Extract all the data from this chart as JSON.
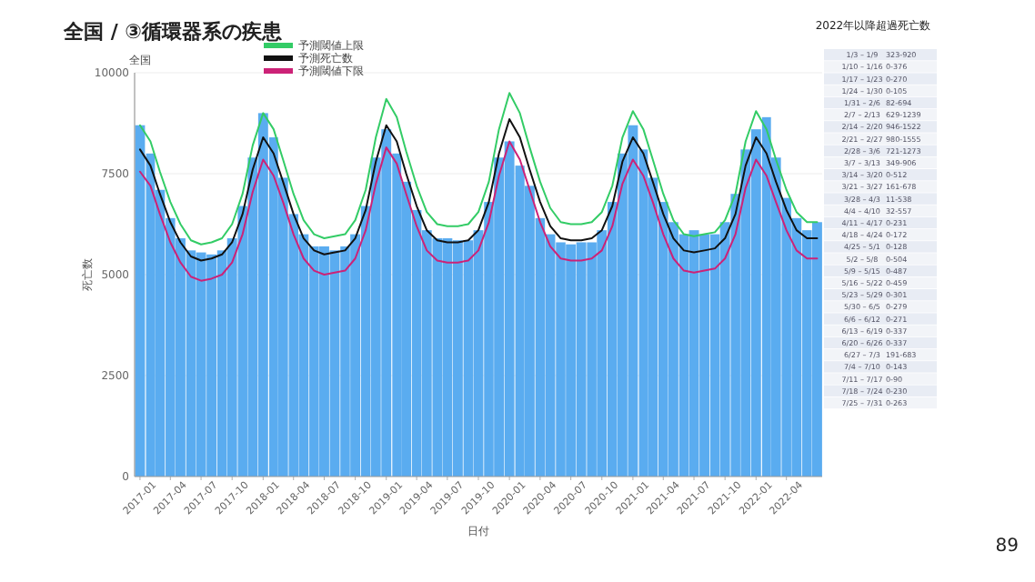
{
  "chart_data": [
    {
      "type": "bar",
      "title": "全国 / ③循環器系の疾患",
      "xlabel": "日付",
      "ylabel": "死亡数",
      "annotations": [
        "全国",
        "89"
      ],
      "legend": "top",
      "grid": "y",
      "x": [
        "2017-01",
        "2017-02",
        "2017-03",
        "2017-04",
        "2017-05",
        "2017-06",
        "2017-07",
        "2017-08",
        "2017-09",
        "2017-10",
        "2017-11",
        "2017-12",
        "2018-01",
        "2018-02",
        "2018-03",
        "2018-04",
        "2018-05",
        "2018-06",
        "2018-07",
        "2018-08",
        "2018-09",
        "2018-10",
        "2018-11",
        "2018-12",
        "2019-01",
        "2019-02",
        "2019-03",
        "2019-04",
        "2019-05",
        "2019-06",
        "2019-07",
        "2019-08",
        "2019-09",
        "2019-10",
        "2019-11",
        "2019-12",
        "2020-01",
        "2020-02",
        "2020-03",
        "2020-04",
        "2020-05",
        "2020-06",
        "2020-07",
        "2020-08",
        "2020-09",
        "2020-10",
        "2020-11",
        "2020-12",
        "2021-01",
        "2021-02",
        "2021-03",
        "2021-04",
        "2021-05",
        "2021-06",
        "2021-07",
        "2021-08",
        "2021-09",
        "2021-10",
        "2021-11",
        "2021-12",
        "2022-01",
        "2022-02",
        "2022-03",
        "2022-04",
        "2022-05",
        "2022-06",
        "2022-07"
      ],
      "xlim": [
        "2016-12-16",
        "2022-07-16"
      ],
      "xticks": [
        {
          "value": "2017-01-01",
          "label": "2017-01"
        },
        {
          "value": "2017-04-01",
          "label": "2017-04"
        },
        {
          "value": "2017-07-01",
          "label": "2017-07"
        },
        {
          "value": "2017-10-01",
          "label": "2017-10"
        },
        {
          "value": "2018-01-01",
          "label": "2018-01"
        },
        {
          "value": "2018-04-01",
          "label": "2018-04"
        },
        {
          "value": "2018-07-01",
          "label": "2018-07"
        },
        {
          "value": "2018-10-01",
          "label": "2018-10"
        },
        {
          "value": "2019-01-01",
          "label": "2019-01"
        },
        {
          "value": "2019-04-01",
          "label": "2019-04"
        },
        {
          "value": "2019-07-01",
          "label": "2019-07"
        },
        {
          "value": "2019-10-01",
          "label": "2019-10"
        },
        {
          "value": "2020-01-01",
          "label": "2020-01"
        },
        {
          "value": "2020-04-01",
          "label": "2020-04"
        },
        {
          "value": "2020-07-01",
          "label": "2020-07"
        },
        {
          "value": "2020-10-01",
          "label": "2020-10"
        },
        {
          "value": "2021-01-01",
          "label": "2021-01"
        },
        {
          "value": "2021-04-01",
          "label": "2021-04"
        },
        {
          "value": "2021-07-01",
          "label": "2021-07"
        },
        {
          "value": "2021-10-01",
          "label": "2021-10"
        },
        {
          "value": "2022-01-01",
          "label": "2022-01"
        },
        {
          "value": "2022-04-01",
          "label": "2022-04"
        }
      ],
      "ylim": [
        0,
        10000
      ],
      "yticks": [
        0,
        2500,
        5000,
        7500,
        10000
      ],
      "series": [
        {
          "type": "bar",
          "color": "#5aacf0",
          "values": [
            8700,
            8000,
            7100,
            6400,
            5900,
            5600,
            5550,
            5500,
            5600,
            5900,
            6700,
            7900,
            9000,
            8400,
            7400,
            6500,
            6000,
            5700,
            5700,
            5600,
            5700,
            6000,
            6700,
            7900,
            8600,
            8000,
            7300,
            6600,
            6100,
            5900,
            5900,
            5850,
            5850,
            6100,
            6800,
            7900,
            8300,
            7700,
            7200,
            6400,
            6000,
            5800,
            5750,
            5800,
            5800,
            6100,
            6800,
            8000,
            8700,
            8100,
            7400,
            6800,
            6300,
            6000,
            6100,
            6000,
            6000,
            6300,
            7000,
            8100,
            8600,
            8900,
            7900,
            6900,
            6400,
            6100,
            6300
          ]
        },
        {
          "type": "line",
          "name": "予測閾値上限",
          "color": "#33cc66",
          "values": [
            8700,
            8300,
            7550,
            6800,
            6250,
            5850,
            5750,
            5800,
            5900,
            6250,
            7000,
            8200,
            9000,
            8600,
            7850,
            7000,
            6350,
            6000,
            5900,
            5950,
            6000,
            6350,
            7100,
            8400,
            9350,
            8900,
            8050,
            7200,
            6550,
            6250,
            6200,
            6200,
            6250,
            6550,
            7300,
            8600,
            9500,
            9000,
            8150,
            7300,
            6650,
            6300,
            6250,
            6250,
            6300,
            6550,
            7200,
            8400,
            9050,
            8600,
            7850,
            7000,
            6350,
            6000,
            5950,
            6000,
            6050,
            6350,
            7000,
            8300,
            9050,
            8600,
            7850,
            7100,
            6550,
            6300,
            6300
          ]
        },
        {
          "type": "line",
          "name": "予測死亡数",
          "color": "#111111",
          "values": [
            8100,
            7700,
            7000,
            6300,
            5800,
            5450,
            5350,
            5400,
            5500,
            5800,
            6500,
            7600,
            8400,
            8000,
            7300,
            6500,
            5900,
            5600,
            5500,
            5550,
            5600,
            5900,
            6600,
            7800,
            8700,
            8300,
            7500,
            6700,
            6100,
            5850,
            5800,
            5800,
            5850,
            6100,
            6800,
            8000,
            8850,
            8400,
            7600,
            6800,
            6200,
            5900,
            5850,
            5850,
            5900,
            6100,
            6700,
            7800,
            8400,
            8000,
            7300,
            6500,
            5900,
            5600,
            5550,
            5600,
            5650,
            5900,
            6500,
            7700,
            8400,
            8000,
            7300,
            6600,
            6100,
            5900,
            5900
          ]
        },
        {
          "type": "line",
          "name": "予測閾値下限",
          "color": "#cc2277",
          "values": [
            7550,
            7200,
            6500,
            5800,
            5300,
            4950,
            4850,
            4900,
            5000,
            5300,
            6000,
            7050,
            7850,
            7450,
            6800,
            6000,
            5400,
            5100,
            5000,
            5050,
            5100,
            5400,
            6100,
            7250,
            8150,
            7750,
            7000,
            6200,
            5600,
            5350,
            5300,
            5300,
            5350,
            5600,
            6300,
            7450,
            8300,
            7850,
            7100,
            6300,
            5700,
            5400,
            5350,
            5350,
            5400,
            5600,
            6200,
            7250,
            7850,
            7450,
            6800,
            6000,
            5400,
            5100,
            5050,
            5100,
            5150,
            5400,
            6000,
            7150,
            7850,
            7450,
            6800,
            6100,
            5600,
            5400,
            5400
          ]
        }
      ]
    },
    {
      "type": "other",
      "title": "2022年以降超過死亡数",
      "annotations": [
        "1/3 – 1/9",
        "323-920",
        "1/10 – 1/16",
        "0-376",
        "1/17 – 1/23",
        "0-270",
        "1/24 – 1/30",
        "0-105",
        "1/31 – 2/6",
        "82-694",
        "2/7 – 2/13",
        "629-1239",
        "2/14 – 2/20",
        "946-1522",
        "2/21 – 2/27",
        "980-1555",
        "2/28 – 3/6",
        "721-1273",
        "3/7 – 3/13",
        "349-906",
        "3/14 – 3/20",
        "0-512",
        "3/21 – 3/27",
        "161-678",
        "3/28 – 4/3",
        "11-538",
        "4/4 – 4/10",
        "32-557",
        "4/11 – 4/17",
        "0-231",
        "4/18 – 4/24",
        "0-172",
        "4/25 – 5/1",
        "0-128",
        "5/2 – 5/8",
        "0-504",
        "5/9 – 5/15",
        "0-487",
        "5/16 – 5/22",
        "0-459",
        "5/23 – 5/29",
        "0-301",
        "5/30 – 6/5",
        "0-279",
        "6/6 – 6/12",
        "0-271",
        "6/13 – 6/19",
        "0-337",
        "6/20 – 6/26",
        "0-337",
        "6/27 – 7/3",
        "191-683",
        "7/4 – 7/10",
        "0-143",
        "7/11 – 7/17",
        "0-90",
        "7/18 – 7/24",
        "0-230",
        "7/25 – 7/31",
        "0-263"
      ]
    }
  ]
}
